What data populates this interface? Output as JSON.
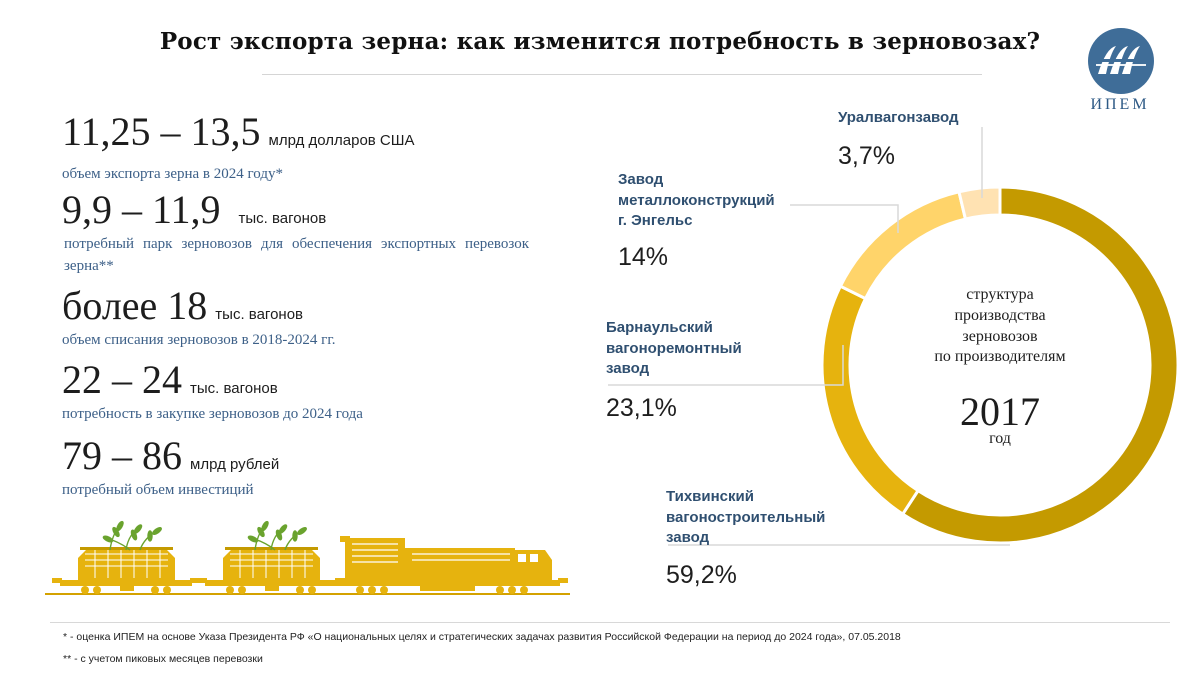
{
  "title": "Рост экспорта зерна: как изменится потребность в зерновозах?",
  "logo": {
    "text": "ИПЕМ"
  },
  "stats": [
    {
      "value": "11,25 – 13,5",
      "unit": "млрд долларов США",
      "desc": "объем экспорта зерна в 2024 году*"
    },
    {
      "value": "9,9 – 11,9",
      "unit": "тыс. вагонов",
      "desc": "потребный парк зерновозов для обеспечения экспортных перевозок зерна**"
    },
    {
      "value": "более 18",
      "unit": "тыс. вагонов",
      "desc": "объем списания зерновозов в 2018-2024 гг."
    },
    {
      "value": "22 – 24",
      "unit": "тыс. вагонов",
      "desc": "потребность в закупке зерновозов до 2024 года"
    },
    {
      "value": "79 – 86",
      "unit": "млрд рублей",
      "desc": "потребный объем инвестиций"
    }
  ],
  "chart_data": {
    "type": "pie",
    "donut": true,
    "center": {
      "line1": "структура",
      "line2": "производства",
      "line3": "зерновозов",
      "line4": "по производителям",
      "year": "2017",
      "year_label": "год"
    },
    "slices": [
      {
        "label": "Тихвинский вагоностроительный завод",
        "value": 59.2,
        "display": "59,2%",
        "color": "#c49a00"
      },
      {
        "label": "Барнаульский вагоноремонтный завод",
        "value": 23.1,
        "display": "23,1%",
        "color": "#e6b30e"
      },
      {
        "label": "Завод металлоконструкций г. Энгельс",
        "value": 14,
        "display": "14%",
        "color": "#ffd46a"
      },
      {
        "label": "Уралвагонзавод",
        "value": 3.7,
        "display": "3,7%",
        "color": "#ffe2b2"
      }
    ],
    "labels": {
      "s0": {
        "l1": "Тихвинский",
        "l2": "вагоностроительный",
        "l3": "завод"
      },
      "s1": {
        "l1": "Барнаульский",
        "l2": "вагоноремонтный",
        "l3": "завод"
      },
      "s2": {
        "l1": "Завод",
        "l2": "металлоконструкций",
        "l3": "г. Энгельс"
      },
      "s3": {
        "l1": "Уралвагонзавод"
      }
    }
  },
  "footnotes": [
    "* - оценка ИПЕМ на основе Указа Президента РФ «О национальных целях и стратегических задачах развития Российской Федерации на период до 2024 года», 07.05.2018",
    "** - с учетом пиковых месяцев перевозки"
  ],
  "colors": {
    "accent_gold": "#c49a00",
    "train": "#e6b30e",
    "text_blue": "#3d6088",
    "label_blue": "#2f4f70",
    "logo_blue": "#2e5a86",
    "wheat_green": "#6aa32e"
  }
}
